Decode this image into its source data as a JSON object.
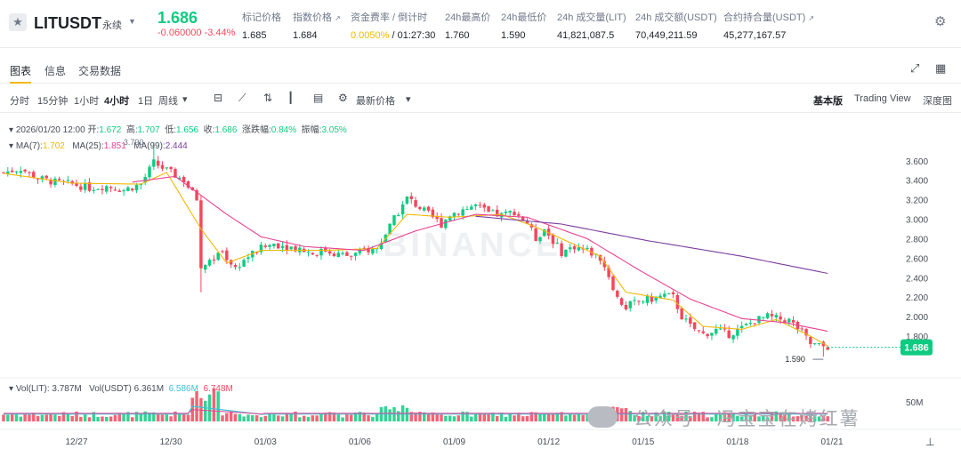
{
  "header": {
    "symbol": "LITUSDT",
    "contract": "永续",
    "last_price": "1.686",
    "change": "-0.060000 -3.44%",
    "stats": [
      {
        "label": "标记价格",
        "value": "1.685"
      },
      {
        "label": "指数价格",
        "value": "1.684"
      },
      {
        "label": "资金费率 / 倒计时",
        "value": "0.0050%",
        "value2": " / 01:27:30"
      },
      {
        "label": "24h最高价",
        "value": "1.760"
      },
      {
        "label": "24h最低价",
        "value": "1.590"
      },
      {
        "label": "24h 成交量(LIT)",
        "value": "41,821,087.5"
      },
      {
        "label": "24h 成交额(USDT)",
        "value": "70,449,211.59"
      },
      {
        "label": "合约持合量(USDT)",
        "value": "45,277,167.57"
      }
    ]
  },
  "tabs": [
    "图表",
    "信息",
    "交易数据"
  ],
  "toolbar": {
    "intervals": [
      "分时",
      "15分钟",
      "1小时",
      "4小时",
      "1日",
      "周线"
    ],
    "active_interval": "4小时",
    "price_type": "最新价格",
    "views": [
      "基本版",
      "Trading View",
      "深度图"
    ]
  },
  "legend": {
    "date": "2026/01/20 12:00",
    "open_label": "开:",
    "open": "1.672",
    "high_label": "高:",
    "high": "1.707",
    "low_label": "低:",
    "low": "1.656",
    "close_label": "收:",
    "close": "1.686",
    "chg_label": "涨跌幅:",
    "chg": "0.84%",
    "amp_label": "振幅:",
    "amp": "3.05%",
    "ma7_label": "MA(7):",
    "ma7": "1.702",
    "ma25_label": "MA(25):",
    "ma25": "1.851",
    "ma99_label": "MA(99):",
    "ma99": "2.444",
    "vol_label": "Vol(LIT):",
    "vol": "3.787M",
    "volu_label": "Vol(USDT)",
    "volu": "6.361M",
    "vol_ma1": "6.586M",
    "vol_ma2": "6.748M"
  },
  "watermark": "公众号 · 冯宝宝在烤红薯",
  "chart_data": {
    "type": "candlestick",
    "yaxis_ticks": [
      "3.600",
      "3.400",
      "3.200",
      "3.000",
      "2.800",
      "2.600",
      "2.400",
      "2.200",
      "2.000",
      "1.800"
    ],
    "ylim": [
      1.6,
      3.68
    ],
    "xaxis_ticks": [
      "12/27",
      "12/30",
      "01/03",
      "01/06",
      "01/09",
      "01/12",
      "01/15",
      "01/18",
      "01/21"
    ],
    "last_price_label": "1.686",
    "max_label": "3.790",
    "min_label": "1.590",
    "vol_axis_label": "50M",
    "close_path": [
      [
        0,
        3.48
      ],
      [
        4,
        3.52
      ],
      [
        8,
        3.42
      ],
      [
        12,
        3.38
      ],
      [
        16,
        3.36
      ],
      [
        20,
        3.32
      ],
      [
        24,
        3.34
      ],
      [
        28,
        3.3
      ],
      [
        32,
        3.36
      ],
      [
        35,
        3.58
      ],
      [
        38,
        3.5
      ],
      [
        42,
        3.4
      ],
      [
        45,
        3.2
      ],
      [
        46,
        2.5
      ],
      [
        48,
        2.58
      ],
      [
        51,
        2.66
      ],
      [
        54,
        2.5
      ],
      [
        57,
        2.62
      ],
      [
        60,
        2.7
      ],
      [
        63,
        2.75
      ],
      [
        66,
        2.72
      ],
      [
        69,
        2.7
      ],
      [
        72,
        2.65
      ],
      [
        75,
        2.68
      ],
      [
        78,
        2.64
      ],
      [
        81,
        2.62
      ],
      [
        84,
        2.68
      ],
      [
        87,
        2.7
      ],
      [
        89,
        2.85
      ],
      [
        91,
        3.0
      ],
      [
        94,
        3.22
      ],
      [
        96,
        3.15
      ],
      [
        99,
        3.05
      ],
      [
        102,
        2.95
      ],
      [
        104,
        3.05
      ],
      [
        107,
        3.1
      ],
      [
        110,
        3.14
      ],
      [
        113,
        3.06
      ],
      [
        116,
        3.04
      ],
      [
        119,
        3.08
      ],
      [
        122,
        2.96
      ],
      [
        124,
        2.8
      ],
      [
        126,
        2.9
      ],
      [
        128,
        2.78
      ],
      [
        130,
        2.66
      ],
      [
        133,
        2.72
      ],
      [
        136,
        2.68
      ],
      [
        139,
        2.6
      ],
      [
        141,
        2.42
      ],
      [
        143,
        2.2
      ],
      [
        145,
        2.1
      ],
      [
        148,
        2.16
      ],
      [
        151,
        2.18
      ],
      [
        154,
        2.22
      ],
      [
        156,
        2.2
      ],
      [
        158,
        2.0
      ],
      [
        160,
        1.9
      ],
      [
        163,
        1.82
      ],
      [
        166,
        1.86
      ],
      [
        169,
        1.82
      ],
      [
        172,
        1.88
      ],
      [
        175,
        1.96
      ],
      [
        178,
        2.0
      ],
      [
        180,
        1.98
      ],
      [
        183,
        1.96
      ],
      [
        186,
        1.84
      ],
      [
        188,
        1.72
      ],
      [
        190,
        1.7
      ],
      [
        192,
        1.69
      ]
    ],
    "ma7_path": [
      [
        0,
        3.47
      ],
      [
        16,
        3.37
      ],
      [
        32,
        3.36
      ],
      [
        38,
        3.48
      ],
      [
        46,
        2.9
      ],
      [
        52,
        2.55
      ],
      [
        60,
        2.68
      ],
      [
        75,
        2.68
      ],
      [
        87,
        2.7
      ],
      [
        94,
        3.05
      ],
      [
        104,
        3.02
      ],
      [
        116,
        3.05
      ],
      [
        124,
        2.92
      ],
      [
        139,
        2.62
      ],
      [
        145,
        2.25
      ],
      [
        156,
        2.17
      ],
      [
        163,
        1.9
      ],
      [
        172,
        1.87
      ],
      [
        180,
        1.97
      ],
      [
        188,
        1.8
      ],
      [
        192,
        1.7
      ]
    ],
    "ma25_path": [
      [
        30,
        3.38
      ],
      [
        40,
        3.44
      ],
      [
        52,
        3.05
      ],
      [
        60,
        2.82
      ],
      [
        70,
        2.72
      ],
      [
        84,
        2.68
      ],
      [
        96,
        2.88
      ],
      [
        110,
        3.05
      ],
      [
        122,
        3.02
      ],
      [
        136,
        2.8
      ],
      [
        148,
        2.48
      ],
      [
        160,
        2.18
      ],
      [
        172,
        1.98
      ],
      [
        182,
        1.94
      ],
      [
        192,
        1.85
      ]
    ],
    "ma99_path": [
      [
        110,
        3.03
      ],
      [
        130,
        2.95
      ],
      [
        150,
        2.78
      ],
      [
        172,
        2.62
      ],
      [
        192,
        2.444
      ]
    ]
  }
}
